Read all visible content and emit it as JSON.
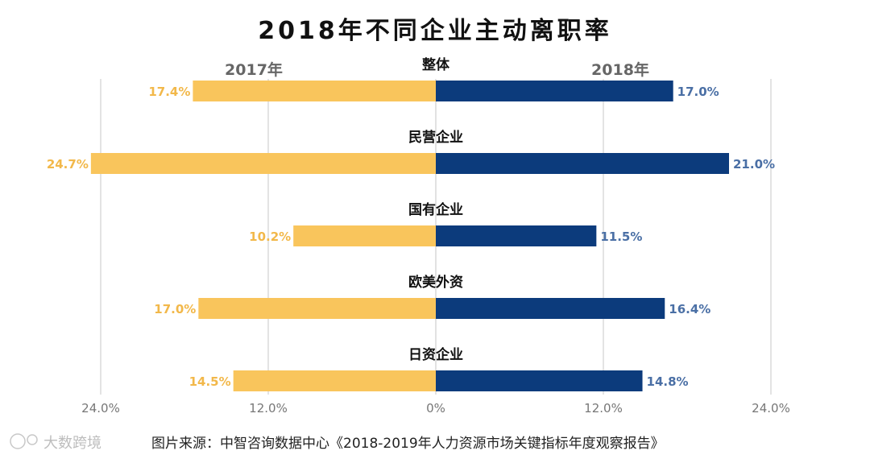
{
  "chart_data": {
    "type": "bar",
    "orientation": "diverging-horizontal",
    "title": "2018年不同企业主动离职率",
    "left_series_label": "2017年",
    "right_series_label": "2018年",
    "categories": [
      "整体",
      "民营企业",
      "国有企业",
      "欧美外资",
      "日资企业"
    ],
    "series": [
      {
        "name": "2017年",
        "values": [
          17.4,
          24.7,
          10.2,
          17.0,
          14.5
        ],
        "labels": [
          "17.4%",
          "24.7%",
          "10.2%",
          "17.0%",
          "14.5%"
        ],
        "color": "#f9c55c"
      },
      {
        "name": "2018年",
        "values": [
          17.0,
          21.0,
          11.5,
          16.4,
          14.8
        ],
        "labels": [
          "17.0%",
          "21.0%",
          "11.5%",
          "16.4%",
          "14.8%"
        ],
        "color": "#0c3b7c"
      }
    ],
    "xlim": [
      -24,
      24
    ],
    "ticks": [
      -24,
      -12,
      0,
      12,
      24
    ],
    "tick_labels": [
      "24.0%",
      "12.0%",
      "0%",
      "12.0%",
      "24.0%"
    ],
    "grid": true,
    "source": "图片来源：中智咨询数据中心《2018-2019年人力资源市场关键指标年度观察报告》",
    "watermark": "大数跨境"
  }
}
